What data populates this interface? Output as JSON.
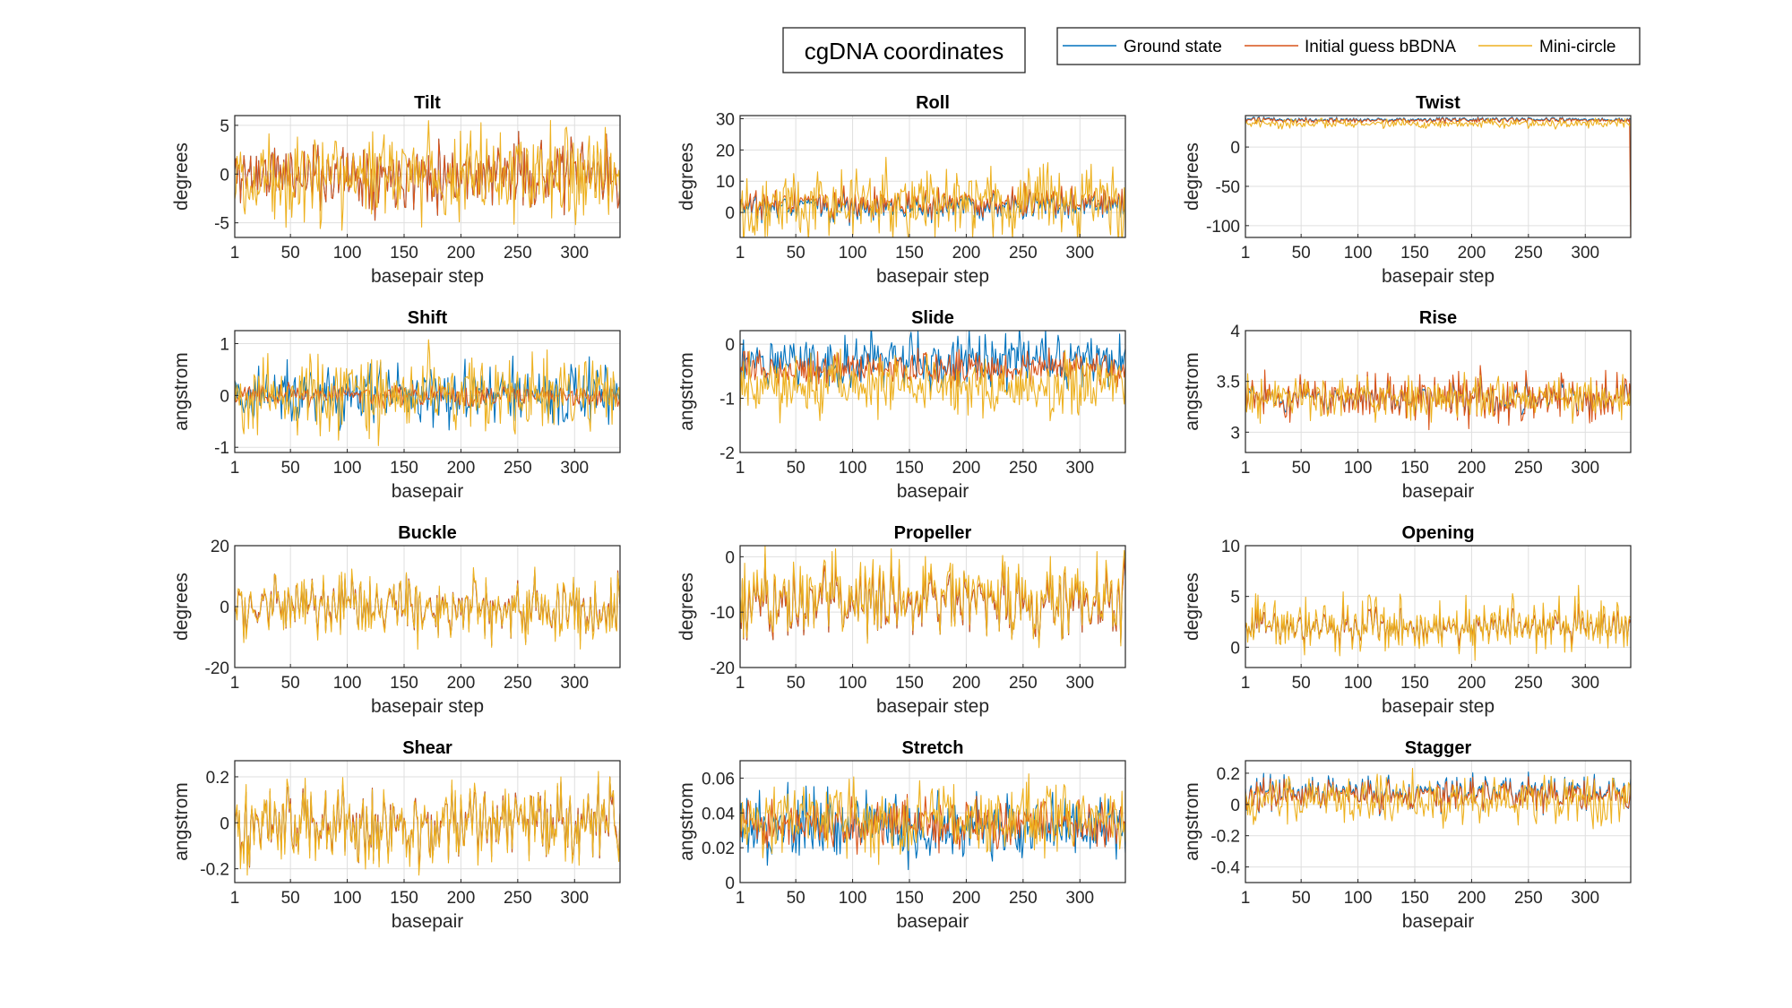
{
  "figure": {
    "title": "cgDNA coordinates",
    "series": [
      {
        "name": "Ground state",
        "color": "#0072BD"
      },
      {
        "name": "Initial guess bBDNA",
        "color": "#D95319"
      },
      {
        "name": "Mini-circle",
        "color": "#EDB120"
      }
    ]
  },
  "chart_data": [
    {
      "type": "line",
      "title": "Tilt",
      "xlabel": "basepair step",
      "ylabel": "degrees",
      "xlim": [
        1,
        340
      ],
      "ylim": [
        -6.5,
        6
      ],
      "yticks": [
        -5,
        0,
        5
      ],
      "xticks": [
        1,
        50,
        100,
        150,
        200,
        250,
        300
      ],
      "grid": true,
      "n": 339,
      "series": [
        {
          "name": "Ground state",
          "mean": 0,
          "amp": 2.0,
          "offset": 0,
          "seed": 11
        },
        {
          "name": "Initial guess bBDNA",
          "mean": 0,
          "amp": 2.0,
          "offset": 0,
          "seed": 11
        },
        {
          "name": "Mini-circle",
          "mean": 0,
          "amp": 2.8,
          "offset": 0,
          "seed": 12
        }
      ]
    },
    {
      "type": "line",
      "title": "Roll",
      "xlabel": "basepair step",
      "ylabel": "degrees",
      "xlim": [
        1,
        340
      ],
      "ylim": [
        -8,
        31
      ],
      "yticks": [
        0,
        10,
        20,
        30
      ],
      "xticks": [
        1,
        50,
        100,
        150,
        200,
        250,
        300
      ],
      "grid": true,
      "n": 339,
      "series": [
        {
          "name": "Ground state",
          "mean": 2,
          "amp": 2.8,
          "offset": 0,
          "seed": 21
        },
        {
          "name": "Initial guess bBDNA",
          "mean": 3,
          "amp": 2.8,
          "offset": 0,
          "seed": 21
        },
        {
          "name": "Mini-circle",
          "mean": 3,
          "amp": 6.5,
          "offset": 0,
          "seed": 22
        }
      ]
    },
    {
      "type": "line",
      "title": "Twist",
      "xlabel": "basepair step",
      "ylabel": "degrees",
      "xlim": [
        1,
        340
      ],
      "ylim": [
        -115,
        40
      ],
      "yticks": [
        -100,
        -50,
        0
      ],
      "xticks": [
        1,
        50,
        100,
        150,
        200,
        250,
        300
      ],
      "grid": true,
      "n": 339,
      "series": [
        {
          "name": "Ground state",
          "mean": 35,
          "amp": 2.0,
          "offset": 0,
          "seed": 31
        },
        {
          "name": "Initial guess bBDNA",
          "mean": 34,
          "amp": 2.0,
          "offset": 0,
          "seed": 31,
          "last": -115
        },
        {
          "name": "Mini-circle",
          "mean": 30,
          "amp": 3.5,
          "offset": 0,
          "seed": 32
        }
      ]
    },
    {
      "type": "line",
      "title": "Shift",
      "xlabel": "basepair",
      "ylabel": "angstrom",
      "xlim": [
        1,
        340
      ],
      "ylim": [
        -1.1,
        1.25
      ],
      "yticks": [
        -1,
        0,
        1
      ],
      "xticks": [
        1,
        50,
        100,
        150,
        200,
        250,
        300
      ],
      "grid": true,
      "n": 339,
      "series": [
        {
          "name": "Ground state",
          "mean": 0,
          "amp": 0.35,
          "offset": 0,
          "seed": 41
        },
        {
          "name": "Initial guess bBDNA",
          "mean": 0,
          "amp": 0.12,
          "offset": 0,
          "seed": 43
        },
        {
          "name": "Mini-circle",
          "mean": 0,
          "amp": 0.45,
          "offset": 0,
          "seed": 42
        }
      ]
    },
    {
      "type": "line",
      "title": "Slide",
      "xlabel": "basepair",
      "ylabel": "angstrom",
      "xlim": [
        1,
        340
      ],
      "ylim": [
        -2,
        0.25
      ],
      "yticks": [
        -2,
        -1,
        0
      ],
      "xticks": [
        1,
        50,
        100,
        150,
        200,
        250,
        300
      ],
      "grid": true,
      "n": 339,
      "series": [
        {
          "name": "Ground state",
          "mean": -0.3,
          "amp": 0.3,
          "offset": 0,
          "seed": 51
        },
        {
          "name": "Initial guess bBDNA",
          "mean": -0.45,
          "amp": 0.18,
          "offset": 0,
          "seed": 53
        },
        {
          "name": "Mini-circle",
          "mean": -0.75,
          "amp": 0.35,
          "offset": 0,
          "seed": 52
        }
      ]
    },
    {
      "type": "line",
      "title": "Rise",
      "xlabel": "basepair",
      "ylabel": "angstrom",
      "xlim": [
        1,
        340
      ],
      "ylim": [
        2.8,
        4
      ],
      "yticks": [
        3,
        3.5,
        4
      ],
      "xticks": [
        1,
        50,
        100,
        150,
        200,
        250,
        300
      ],
      "grid": true,
      "n": 339,
      "series": [
        {
          "name": "Ground state",
          "mean": 3.33,
          "amp": 0.1,
          "offset": 0,
          "seed": 61
        },
        {
          "name": "Initial guess bBDNA",
          "mean": 3.33,
          "amp": 0.14,
          "offset": 0,
          "seed": 61
        },
        {
          "name": "Mini-circle",
          "mean": 3.35,
          "amp": 0.12,
          "offset": 0,
          "seed": 62
        }
      ]
    },
    {
      "type": "line",
      "title": "Buckle",
      "xlabel": "basepair step",
      "ylabel": "degrees",
      "xlim": [
        1,
        340
      ],
      "ylim": [
        -20,
        20
      ],
      "yticks": [
        -20,
        0,
        20
      ],
      "xticks": [
        1,
        50,
        100,
        150,
        200,
        250,
        300
      ],
      "grid": true,
      "n": 340,
      "series": [
        {
          "name": "Ground state",
          "mean": 0,
          "amp": 5.5,
          "offset": 0,
          "seed": 71
        },
        {
          "name": "Initial guess bBDNA",
          "mean": 0,
          "amp": 5.5,
          "offset": 0,
          "seed": 71
        },
        {
          "name": "Mini-circle",
          "mean": 0,
          "amp": 6.0,
          "offset": 0.6,
          "seed": 71
        }
      ]
    },
    {
      "type": "line",
      "title": "Propeller",
      "xlabel": "basepair step",
      "ylabel": "degrees",
      "xlim": [
        1,
        340
      ],
      "ylim": [
        -20,
        2
      ],
      "yticks": [
        -20,
        -10,
        0
      ],
      "xticks": [
        1,
        50,
        100,
        150,
        200,
        250,
        300
      ],
      "grid": true,
      "n": 340,
      "series": [
        {
          "name": "Ground state",
          "mean": -8,
          "amp": 4.0,
          "offset": 0,
          "seed": 81
        },
        {
          "name": "Initial guess bBDNA",
          "mean": -8,
          "amp": 4.0,
          "offset": 0,
          "seed": 81
        },
        {
          "name": "Mini-circle",
          "mean": -7,
          "amp": 4.4,
          "offset": 0.6,
          "seed": 81
        }
      ]
    },
    {
      "type": "line",
      "title": "Opening",
      "xlabel": "basepair step",
      "ylabel": "degrees",
      "xlim": [
        1,
        340
      ],
      "ylim": [
        -2,
        10
      ],
      "yticks": [
        0,
        5,
        10
      ],
      "xticks": [
        1,
        50,
        100,
        150,
        200,
        250,
        300
      ],
      "grid": true,
      "n": 340,
      "series": [
        {
          "name": "Ground state",
          "mean": 2,
          "amp": 1.0,
          "offset": 0,
          "seed": 91
        },
        {
          "name": "Initial guess bBDNA",
          "mean": 2,
          "amp": 1.0,
          "offset": 0,
          "seed": 91
        },
        {
          "name": "Mini-circle",
          "mean": 2.2,
          "amp": 1.6,
          "offset": 0.6,
          "seed": 91
        }
      ]
    },
    {
      "type": "line",
      "title": "Shear",
      "xlabel": "basepair",
      "ylabel": "angstrom",
      "xlim": [
        1,
        340
      ],
      "ylim": [
        -0.26,
        0.27
      ],
      "yticks": [
        -0.2,
        0,
        0.2
      ],
      "xticks": [
        1,
        50,
        100,
        150,
        200,
        250,
        300
      ],
      "grid": true,
      "n": 340,
      "series": [
        {
          "name": "Ground state",
          "mean": 0,
          "amp": 0.1,
          "offset": 0,
          "seed": 101
        },
        {
          "name": "Initial guess bBDNA",
          "mean": 0,
          "amp": 0.1,
          "offset": 0,
          "seed": 101
        },
        {
          "name": "Mini-circle",
          "mean": 0,
          "amp": 0.11,
          "offset": 0.6,
          "seed": 101
        }
      ]
    },
    {
      "type": "line",
      "title": "Stretch",
      "xlabel": "basepair",
      "ylabel": "angstrom",
      "xlim": [
        1,
        340
      ],
      "ylim": [
        0,
        0.07
      ],
      "yticks": [
        0,
        0.02,
        0.04,
        0.06
      ],
      "xticks": [
        1,
        50,
        100,
        150,
        200,
        250,
        300
      ],
      "grid": true,
      "n": 340,
      "series": [
        {
          "name": "Ground state",
          "mean": 0.032,
          "amp": 0.011,
          "offset": 0,
          "seed": 111
        },
        {
          "name": "Initial guess bBDNA",
          "mean": 0.034,
          "amp": 0.008,
          "offset": 0,
          "seed": 113
        },
        {
          "name": "Mini-circle",
          "mean": 0.036,
          "amp": 0.012,
          "offset": 0,
          "seed": 112
        }
      ]
    },
    {
      "type": "line",
      "title": "Stagger",
      "xlabel": "basepair",
      "ylabel": "angstrom",
      "xlim": [
        1,
        340
      ],
      "ylim": [
        -0.5,
        0.28
      ],
      "yticks": [
        -0.4,
        -0.2,
        0,
        0.2
      ],
      "xticks": [
        1,
        50,
        100,
        150,
        200,
        250,
        300
      ],
      "grid": true,
      "n": 340,
      "series": [
        {
          "name": "Ground state",
          "mean": 0.07,
          "amp": 0.07,
          "offset": 0,
          "seed": 121
        },
        {
          "name": "Initial guess bBDNA",
          "mean": 0.06,
          "amp": 0.06,
          "offset": 0,
          "seed": 121
        },
        {
          "name": "Mini-circle",
          "mean": 0.02,
          "amp": 0.09,
          "offset": 0,
          "seed": 122
        }
      ]
    }
  ]
}
